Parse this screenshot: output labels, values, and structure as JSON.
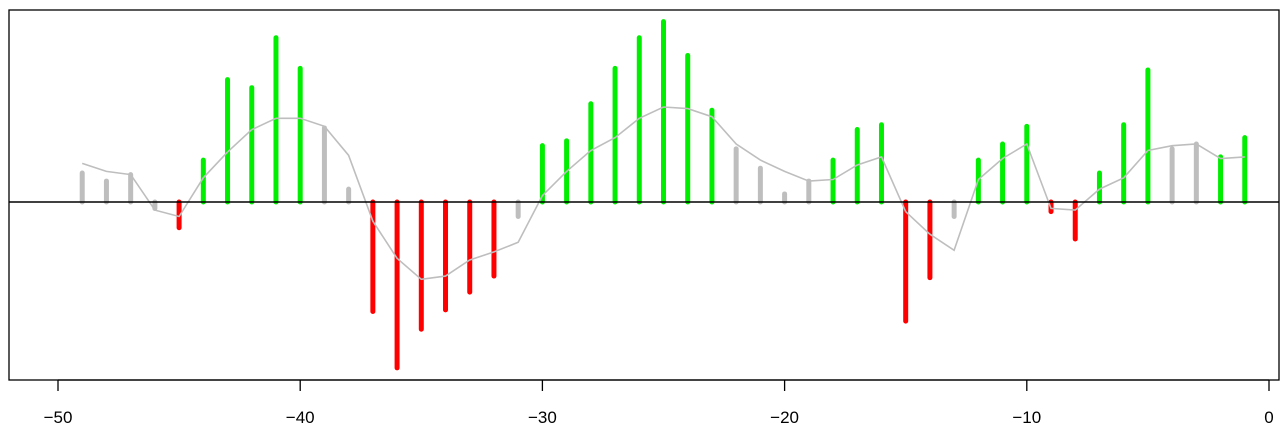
{
  "chart_data": {
    "type": "bar",
    "title": "",
    "xlabel": "",
    "ylabel": "",
    "xlim": [
      -50,
      0
    ],
    "ylim": [
      -1.05,
      1.12
    ],
    "xticks": [
      -50,
      -40,
      -30,
      -20,
      -10,
      0
    ],
    "xtick_labels": [
      "−50",
      "−40",
      "−30",
      "−20",
      "−10",
      "0"
    ],
    "show_y_axis": false,
    "grid": false,
    "zero_line": true,
    "colors": {
      "positive_strong": "#00ee00",
      "negative_strong": "#ff0000",
      "neutral": "#bebebe",
      "smooth_line": "#bebebe",
      "axis": "#000000"
    },
    "bars": [
      {
        "x": -49,
        "value": 0.18,
        "color": "neutral"
      },
      {
        "x": -48,
        "value": 0.13,
        "color": "neutral"
      },
      {
        "x": -47,
        "value": 0.17,
        "color": "neutral"
      },
      {
        "x": -46,
        "value": -0.04,
        "color": "neutral"
      },
      {
        "x": -45,
        "value": -0.16,
        "color": "negative_strong"
      },
      {
        "x": -44,
        "value": 0.26,
        "color": "positive_strong"
      },
      {
        "x": -43,
        "value": 0.76,
        "color": "positive_strong"
      },
      {
        "x": -42,
        "value": 0.71,
        "color": "positive_strong"
      },
      {
        "x": -41,
        "value": 1.02,
        "color": "positive_strong"
      },
      {
        "x": -40,
        "value": 0.83,
        "color": "positive_strong"
      },
      {
        "x": -39,
        "value": 0.46,
        "color": "neutral"
      },
      {
        "x": -38,
        "value": 0.08,
        "color": "neutral"
      },
      {
        "x": -37,
        "value": -0.68,
        "color": "negative_strong"
      },
      {
        "x": -36,
        "value": -1.03,
        "color": "negative_strong"
      },
      {
        "x": -35,
        "value": -0.79,
        "color": "negative_strong"
      },
      {
        "x": -34,
        "value": -0.67,
        "color": "negative_strong"
      },
      {
        "x": -33,
        "value": -0.56,
        "color": "negative_strong"
      },
      {
        "x": -32,
        "value": -0.46,
        "color": "negative_strong"
      },
      {
        "x": -31,
        "value": -0.09,
        "color": "neutral"
      },
      {
        "x": -30,
        "value": 0.35,
        "color": "positive_strong"
      },
      {
        "x": -29,
        "value": 0.38,
        "color": "positive_strong"
      },
      {
        "x": -28,
        "value": 0.61,
        "color": "positive_strong"
      },
      {
        "x": -27,
        "value": 0.83,
        "color": "positive_strong"
      },
      {
        "x": -26,
        "value": 1.02,
        "color": "positive_strong"
      },
      {
        "x": -25,
        "value": 1.12,
        "color": "positive_strong"
      },
      {
        "x": -24,
        "value": 0.91,
        "color": "positive_strong"
      },
      {
        "x": -23,
        "value": 0.57,
        "color": "positive_strong"
      },
      {
        "x": -22,
        "value": 0.33,
        "color": "neutral"
      },
      {
        "x": -21,
        "value": 0.21,
        "color": "neutral"
      },
      {
        "x": -20,
        "value": 0.05,
        "color": "neutral"
      },
      {
        "x": -19,
        "value": 0.13,
        "color": "neutral"
      },
      {
        "x": -18,
        "value": 0.26,
        "color": "positive_strong"
      },
      {
        "x": -17,
        "value": 0.45,
        "color": "positive_strong"
      },
      {
        "x": -16,
        "value": 0.48,
        "color": "positive_strong"
      },
      {
        "x": -15,
        "value": -0.74,
        "color": "negative_strong"
      },
      {
        "x": -14,
        "value": -0.47,
        "color": "negative_strong"
      },
      {
        "x": -13,
        "value": -0.09,
        "color": "neutral"
      },
      {
        "x": -12,
        "value": 0.26,
        "color": "positive_strong"
      },
      {
        "x": -11,
        "value": 0.36,
        "color": "positive_strong"
      },
      {
        "x": -10,
        "value": 0.47,
        "color": "positive_strong"
      },
      {
        "x": -9,
        "value": -0.06,
        "color": "negative_strong"
      },
      {
        "x": -8,
        "value": -0.23,
        "color": "negative_strong"
      },
      {
        "x": -7,
        "value": 0.18,
        "color": "positive_strong"
      },
      {
        "x": -6,
        "value": 0.48,
        "color": "positive_strong"
      },
      {
        "x": -5,
        "value": 0.82,
        "color": "positive_strong"
      },
      {
        "x": -4,
        "value": 0.33,
        "color": "neutral"
      },
      {
        "x": -3,
        "value": 0.36,
        "color": "neutral"
      },
      {
        "x": -2,
        "value": 0.28,
        "color": "positive_strong"
      },
      {
        "x": -1,
        "value": 0.4,
        "color": "positive_strong"
      }
    ],
    "smooth_line": {
      "x": [
        -49,
        -48,
        -47,
        -46,
        -45,
        -44,
        -43,
        -42,
        -41,
        -40,
        -39,
        -38,
        -37,
        -36,
        -35,
        -34,
        -33,
        -32,
        -31,
        -30,
        -29,
        -28,
        -27,
        -26,
        -25,
        -24,
        -23,
        -22,
        -21,
        -20,
        -19,
        -18,
        -17,
        -16,
        -15,
        -14,
        -13,
        -12,
        -11,
        -10,
        -9,
        -8,
        -7,
        -6,
        -5,
        -4,
        -3,
        -2,
        -1
      ],
      "y": [
        0.24,
        0.19,
        0.17,
        -0.05,
        -0.09,
        0.15,
        0.31,
        0.45,
        0.52,
        0.52,
        0.47,
        0.29,
        -0.12,
        -0.35,
        -0.48,
        -0.46,
        -0.36,
        -0.31,
        -0.25,
        0.04,
        0.19,
        0.32,
        0.4,
        0.52,
        0.59,
        0.58,
        0.53,
        0.36,
        0.26,
        0.19,
        0.13,
        0.14,
        0.23,
        0.28,
        -0.06,
        -0.2,
        -0.3,
        0.14,
        0.27,
        0.36,
        -0.04,
        -0.05,
        0.08,
        0.15,
        0.32,
        0.35,
        0.36,
        0.27,
        0.28
      ]
    }
  }
}
